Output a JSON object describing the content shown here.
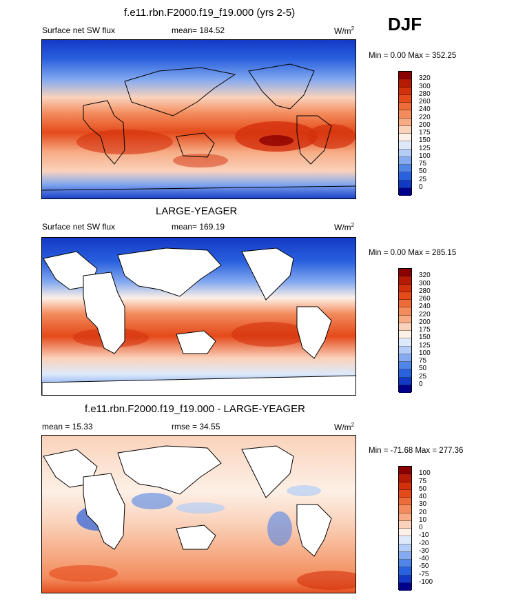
{
  "season": "DJF",
  "panels": [
    {
      "title": "f.e11.rbn.F2000.f19_f19.000 (yrs 2-5)",
      "left_label": "Surface net SW flux",
      "center_label": "mean= 184.52",
      "units": "W/m",
      "units_sup": "2",
      "minmax": "Min =   0.00 Max = 352.25",
      "colorbar": {
        "labels": [
          "320",
          "300",
          "280",
          "260",
          "240",
          "220",
          "200",
          "175",
          "150",
          "125",
          "100",
          "75",
          "50",
          "25",
          "0"
        ],
        "colors": [
          "#8b0000",
          "#b51a05",
          "#d3300c",
          "#e44a1a",
          "#ee6b3a",
          "#f38b5c",
          "#f6ab84",
          "#fad2bb",
          "#fdf0e6",
          "#dde9fb",
          "#b3cdf6",
          "#85aaf0",
          "#5185e8",
          "#2a61de",
          "#1339c6",
          "#00008b"
        ]
      }
    },
    {
      "title": "LARGE-YEAGER",
      "left_label": "Surface net SW flux",
      "center_label": "mean= 169.19",
      "units": "W/m",
      "units_sup": "2",
      "minmax": "Min =   0.00 Max = 285.15",
      "colorbar": {
        "labels": [
          "320",
          "300",
          "280",
          "260",
          "240",
          "220",
          "200",
          "175",
          "150",
          "125",
          "100",
          "75",
          "50",
          "25",
          "0"
        ],
        "colors": [
          "#8b0000",
          "#b51a05",
          "#d3300c",
          "#e44a1a",
          "#ee6b3a",
          "#f38b5c",
          "#f6ab84",
          "#fad2bb",
          "#fdf0e6",
          "#dde9fb",
          "#b3cdf6",
          "#85aaf0",
          "#5185e8",
          "#2a61de",
          "#1339c6",
          "#00008b"
        ]
      }
    },
    {
      "title": "f.e11.rbn.F2000.f19_f19.000 - LARGE-YEAGER",
      "left_label": "mean =  15.33",
      "center_label": "rmse =  34.55",
      "units": "W/m",
      "units_sup": "2",
      "minmax": "Min = -71.68 Max = 277.36",
      "colorbar": {
        "labels": [
          "100",
          "75",
          "50",
          "40",
          "30",
          "20",
          "10",
          "0",
          "-10",
          "-20",
          "-30",
          "-40",
          "-50",
          "-75",
          "-100"
        ],
        "colors": [
          "#8b0000",
          "#b51a05",
          "#d3300c",
          "#e44a1a",
          "#ee6b3a",
          "#f38b5c",
          "#f6ab84",
          "#fad2bb",
          "#fdf0e6",
          "#dde9fb",
          "#b3cdf6",
          "#85aaf0",
          "#5185e8",
          "#2a61de",
          "#1339c6",
          "#00008b"
        ]
      }
    }
  ]
}
